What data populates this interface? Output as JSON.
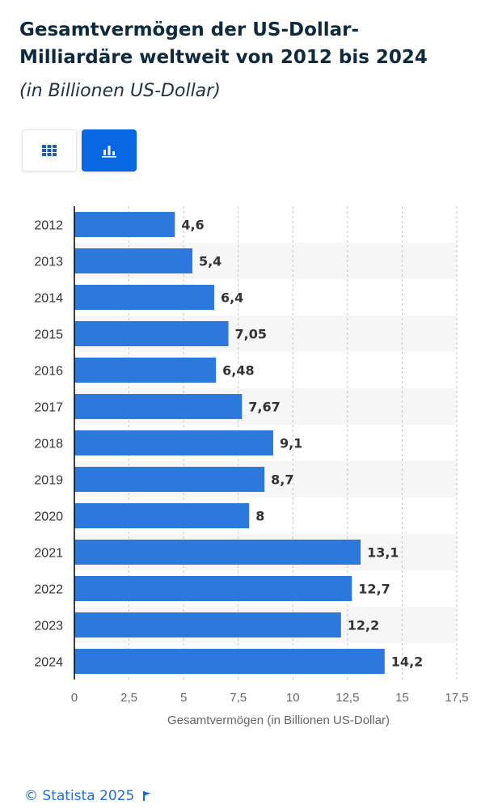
{
  "header": {
    "title": "Gesamtvermögen der US-Dollar-Milliardäre weltweit von 2012 bis 2024",
    "subtitle": "(in Billionen US-Dollar)"
  },
  "view_toggle": {
    "table_icon": "grid-icon",
    "chart_icon": "bar-chart-icon",
    "active": "chart"
  },
  "colors": {
    "bar": "#2c78dc",
    "accent": "#0a67e3",
    "title": "#0d2a3e",
    "footer": "#1b6fd8"
  },
  "footer": {
    "credit": "© Statista 2025",
    "flag_icon": "flag-icon"
  },
  "chart_data": {
    "type": "bar",
    "orientation": "horizontal",
    "categories": [
      "2012",
      "2013",
      "2014",
      "2015",
      "2016",
      "2017",
      "2018",
      "2019",
      "2020",
      "2021",
      "2022",
      "2023",
      "2024"
    ],
    "values": [
      4.6,
      5.4,
      6.4,
      7.05,
      6.48,
      7.67,
      9.1,
      8.7,
      8,
      13.1,
      12.7,
      12.2,
      14.2
    ],
    "value_labels": [
      "4,6",
      "5,4",
      "6,4",
      "7,05",
      "6,48",
      "7,67",
      "9,1",
      "8,7",
      "8",
      "13,1",
      "12,7",
      "12,2",
      "14,2"
    ],
    "xlabel": "Gesamtvermögen (in Billionen US-Dollar)",
    "ylabel": "",
    "xlim": [
      0,
      17.5
    ],
    "ticks": [
      0,
      2.5,
      5,
      7.5,
      10,
      12.5,
      15,
      17.5
    ],
    "tick_labels": [
      "0",
      "2,5",
      "5",
      "7,5",
      "10",
      "12,5",
      "15",
      "17,5"
    ],
    "grid": true,
    "legend": "none"
  }
}
